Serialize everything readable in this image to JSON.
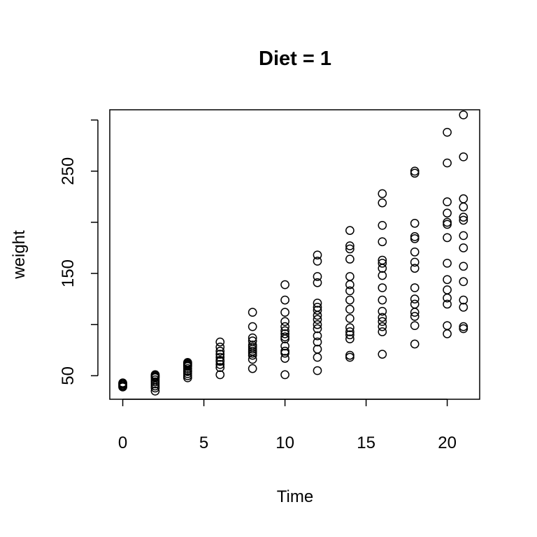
{
  "chart_data": {
    "type": "scatter",
    "title": "Diet = 1",
    "xlabel": "Time",
    "ylabel": "weight",
    "xlim": [
      -0.8,
      22
    ],
    "ylim": [
      27,
      310
    ],
    "xticks": [
      0,
      5,
      10,
      15,
      20
    ],
    "yticks": [
      50,
      100,
      150,
      200,
      250,
      300
    ],
    "ytick_labels": [
      "50",
      "",
      "150",
      "",
      "250",
      ""
    ],
    "marker": "open-circle",
    "grid": false,
    "series": [
      {
        "points": [
          [
            0,
            39
          ],
          [
            0,
            40
          ],
          [
            0,
            41
          ],
          [
            0,
            42
          ],
          [
            0,
            43
          ],
          [
            2,
            35
          ],
          [
            2,
            38
          ],
          [
            2,
            40
          ],
          [
            2,
            42
          ],
          [
            2,
            44
          ],
          [
            2,
            46
          ],
          [
            2,
            48
          ],
          [
            2,
            49
          ],
          [
            2,
            50
          ],
          [
            2,
            51
          ],
          [
            4,
            48
          ],
          [
            4,
            50
          ],
          [
            4,
            52
          ],
          [
            4,
            54
          ],
          [
            4,
            55
          ],
          [
            4,
            57
          ],
          [
            4,
            59
          ],
          [
            4,
            60
          ],
          [
            4,
            61
          ],
          [
            4,
            62
          ],
          [
            4,
            63
          ],
          [
            6,
            51
          ],
          [
            6,
            58
          ],
          [
            6,
            61
          ],
          [
            6,
            64
          ],
          [
            6,
            65
          ],
          [
            6,
            68
          ],
          [
            6,
            71
          ],
          [
            6,
            74
          ],
          [
            6,
            78
          ],
          [
            6,
            83
          ],
          [
            8,
            57
          ],
          [
            8,
            66
          ],
          [
            8,
            70
          ],
          [
            8,
            72
          ],
          [
            8,
            74
          ],
          [
            8,
            76
          ],
          [
            8,
            78
          ],
          [
            8,
            80
          ],
          [
            8,
            84
          ],
          [
            8,
            87
          ],
          [
            8,
            98
          ],
          [
            8,
            112
          ],
          [
            10,
            51
          ],
          [
            10,
            67
          ],
          [
            10,
            72
          ],
          [
            10,
            74
          ],
          [
            10,
            79
          ],
          [
            10,
            86
          ],
          [
            10,
            88
          ],
          [
            10,
            91
          ],
          [
            10,
            94
          ],
          [
            10,
            98
          ],
          [
            10,
            103
          ],
          [
            10,
            112
          ],
          [
            10,
            124
          ],
          [
            10,
            139
          ],
          [
            12,
            55
          ],
          [
            12,
            68
          ],
          [
            12,
            76
          ],
          [
            12,
            83
          ],
          [
            12,
            89
          ],
          [
            12,
            96
          ],
          [
            12,
            100
          ],
          [
            12,
            105
          ],
          [
            12,
            109
          ],
          [
            12,
            114
          ],
          [
            12,
            117
          ],
          [
            12,
            121
          ],
          [
            12,
            141
          ],
          [
            12,
            147
          ],
          [
            12,
            162
          ],
          [
            12,
            168
          ],
          [
            14,
            68
          ],
          [
            14,
            70
          ],
          [
            14,
            86
          ],
          [
            14,
            90
          ],
          [
            14,
            93
          ],
          [
            14,
            97
          ],
          [
            14,
            106
          ],
          [
            14,
            115
          ],
          [
            14,
            124
          ],
          [
            14,
            133
          ],
          [
            14,
            139
          ],
          [
            14,
            147
          ],
          [
            14,
            164
          ],
          [
            14,
            174
          ],
          [
            14,
            177
          ],
          [
            14,
            192
          ],
          [
            16,
            71
          ],
          [
            16,
            93
          ],
          [
            16,
            98
          ],
          [
            16,
            103
          ],
          [
            16,
            107
          ],
          [
            16,
            113
          ],
          [
            16,
            124
          ],
          [
            16,
            136
          ],
          [
            16,
            148
          ],
          [
            16,
            155
          ],
          [
            16,
            160
          ],
          [
            16,
            163
          ],
          [
            16,
            181
          ],
          [
            16,
            197
          ],
          [
            16,
            219
          ],
          [
            16,
            228
          ],
          [
            18,
            81
          ],
          [
            18,
            99
          ],
          [
            18,
            108
          ],
          [
            18,
            112
          ],
          [
            18,
            120
          ],
          [
            18,
            125
          ],
          [
            18,
            136
          ],
          [
            18,
            155
          ],
          [
            18,
            161
          ],
          [
            18,
            171
          ],
          [
            18,
            184
          ],
          [
            18,
            186
          ],
          [
            18,
            199
          ],
          [
            18,
            248
          ],
          [
            18,
            250
          ],
          [
            20,
            91
          ],
          [
            20,
            99
          ],
          [
            20,
            120
          ],
          [
            20,
            126
          ],
          [
            20,
            134
          ],
          [
            20,
            144
          ],
          [
            20,
            160
          ],
          [
            20,
            185
          ],
          [
            20,
            198
          ],
          [
            20,
            200
          ],
          [
            20,
            209
          ],
          [
            20,
            220
          ],
          [
            20,
            258
          ],
          [
            20,
            288
          ],
          [
            21,
            96
          ],
          [
            21,
            98
          ],
          [
            21,
            117
          ],
          [
            21,
            124
          ],
          [
            21,
            142
          ],
          [
            21,
            157
          ],
          [
            21,
            175
          ],
          [
            21,
            187
          ],
          [
            21,
            202
          ],
          [
            21,
            205
          ],
          [
            21,
            215
          ],
          [
            21,
            223
          ],
          [
            21,
            264
          ],
          [
            21,
            305
          ]
        ]
      }
    ]
  }
}
